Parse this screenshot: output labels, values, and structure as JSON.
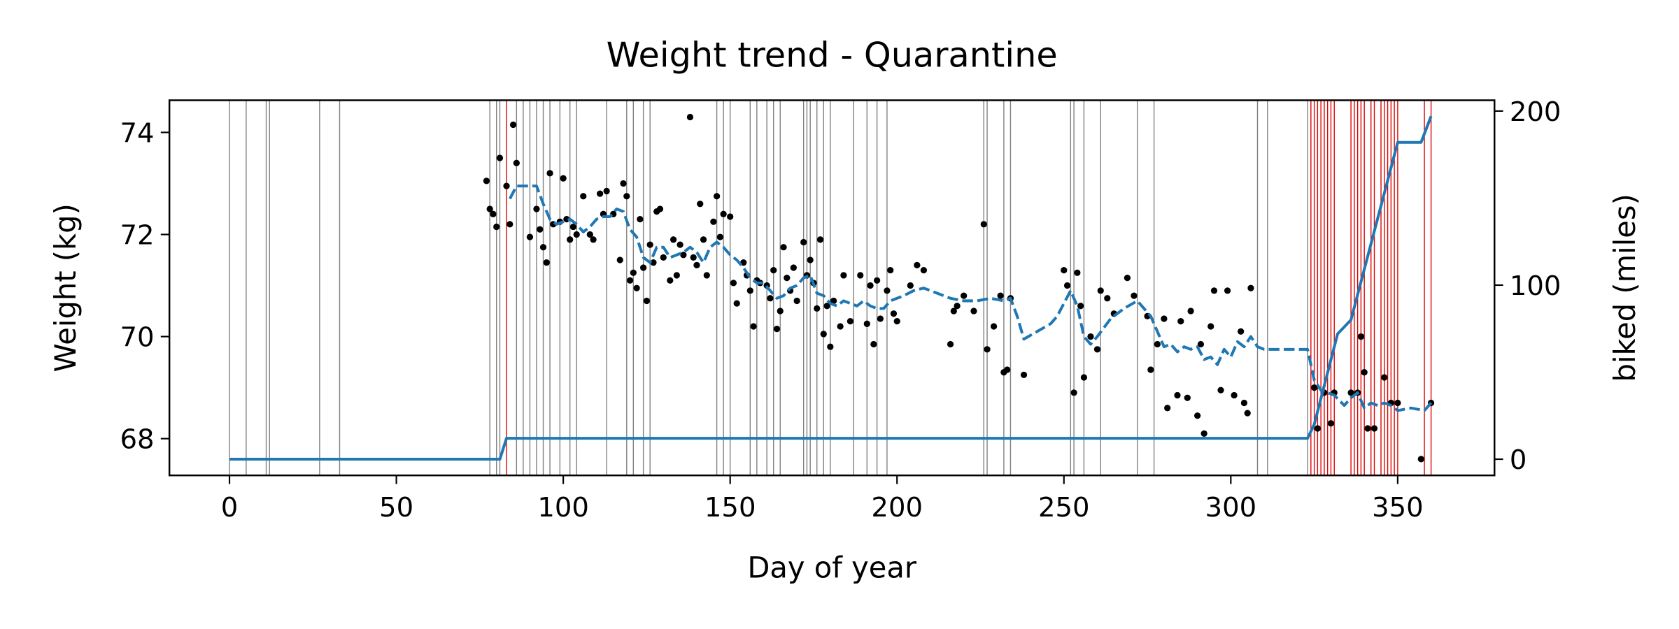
{
  "chart_data": {
    "type": "scatter",
    "title": "Weight trend - Quarantine",
    "xlabel": "Day of year",
    "ylabel": "Weight (kg)",
    "y2label": "biked (miles)",
    "xlim": [
      -18,
      379
    ],
    "ylim": [
      67.28,
      74.63
    ],
    "y2lim": [
      -9.3,
      206.2
    ],
    "xticks": [
      0,
      50,
      100,
      150,
      200,
      250,
      300,
      350
    ],
    "yticks": [
      68,
      70,
      72,
      74
    ],
    "y2ticks": [
      0,
      100,
      200
    ],
    "vlines": [
      {
        "color": "#808080",
        "x": [
          0,
          5,
          11,
          12,
          27,
          33,
          78,
          80,
          81,
          86,
          88,
          90,
          92,
          94,
          96,
          99,
          102,
          104,
          113,
          119,
          121,
          124,
          126,
          146,
          148,
          150,
          156,
          158,
          161,
          163,
          165,
          172,
          173,
          174,
          176,
          178,
          180,
          187,
          191,
          194,
          197,
          226,
          227,
          232,
          234,
          252,
          253,
          256,
          261,
          272,
          277,
          308,
          311,
          323
        ]
      },
      {
        "color": "#e00000",
        "x": [
          83,
          324,
          325,
          326,
          327,
          328,
          329,
          330,
          331,
          336,
          337,
          338,
          339,
          340,
          342,
          343,
          345,
          346,
          347,
          348,
          349,
          350,
          358,
          360
        ]
      }
    ],
    "series": [
      {
        "type": "scatter",
        "color": "#000000",
        "x": [
          77,
          78,
          79,
          80,
          81,
          83,
          84,
          85,
          86,
          90,
          92,
          93,
          94,
          95,
          96,
          97,
          99,
          100,
          101,
          102,
          103,
          104,
          106,
          108,
          109,
          111,
          112,
          113,
          115,
          117,
          118,
          119,
          120,
          121,
          122,
          123,
          124,
          125,
          126,
          127,
          128,
          129,
          130,
          132,
          133,
          134,
          135,
          136,
          138,
          139,
          140,
          141,
          142,
          143,
          145,
          146,
          147,
          148,
          150,
          151,
          152,
          154,
          155,
          156,
          157,
          158,
          159,
          161,
          162,
          163,
          164,
          165,
          166,
          167,
          168,
          169,
          170,
          172,
          173,
          174,
          175,
          176,
          177,
          178,
          179,
          180,
          181,
          183,
          184,
          186,
          189,
          191,
          192,
          193,
          194,
          195,
          197,
          198,
          199,
          200,
          204,
          206,
          208,
          216,
          217,
          218,
          220,
          223,
          226,
          227,
          229,
          231,
          232,
          233,
          234,
          238,
          250,
          251,
          253,
          254,
          255,
          256,
          258,
          260,
          261,
          263,
          265,
          269,
          271,
          275,
          276,
          278,
          280,
          281,
          284,
          285,
          287,
          288,
          290,
          291,
          292,
          294,
          295,
          297,
          299,
          301,
          303,
          304,
          305,
          306,
          325,
          326,
          328,
          330,
          331,
          336,
          338,
          339,
          340,
          341,
          343,
          346,
          348,
          350,
          357,
          360
        ],
        "values": [
          73.05,
          72.5,
          72.4,
          72.15,
          73.5,
          72.95,
          72.2,
          74.15,
          73.4,
          71.95,
          72.5,
          72.1,
          71.75,
          71.45,
          73.2,
          72.2,
          72.25,
          73.1,
          72.3,
          71.9,
          72.15,
          72.0,
          72.75,
          72.0,
          71.9,
          72.8,
          72.4,
          72.85,
          72.4,
          71.5,
          73.0,
          72.75,
          71.1,
          71.25,
          70.95,
          72.3,
          71.35,
          70.7,
          71.8,
          71.45,
          72.45,
          72.5,
          71.55,
          71.1,
          71.9,
          71.2,
          71.8,
          71.6,
          74.3,
          71.55,
          71.4,
          72.6,
          71.9,
          71.2,
          72.25,
          72.75,
          71.95,
          72.4,
          72.35,
          71.05,
          70.65,
          71.45,
          71.2,
          70.9,
          70.2,
          71.1,
          71.05,
          71.0,
          70.75,
          71.3,
          70.15,
          70.5,
          71.75,
          71.15,
          70.9,
          71.35,
          70.7,
          71.85,
          71.2,
          71.5,
          71.05,
          70.55,
          71.9,
          70.05,
          70.6,
          69.8,
          70.7,
          70.2,
          71.2,
          70.3,
          71.2,
          70.25,
          71.0,
          69.85,
          71.1,
          70.35,
          70.9,
          71.3,
          70.45,
          70.3,
          71.0,
          71.4,
          71.3,
          69.85,
          70.5,
          70.6,
          70.8,
          70.5,
          72.2,
          69.75,
          70.2,
          70.8,
          69.3,
          69.35,
          70.75,
          69.25,
          71.3,
          71.0,
          68.9,
          71.25,
          70.6,
          69.2,
          70.0,
          69.75,
          70.9,
          70.75,
          70.45,
          71.15,
          70.8,
          70.4,
          69.35,
          69.85,
          70.35,
          68.6,
          68.85,
          70.3,
          68.8,
          70.5,
          68.45,
          69.85,
          68.1,
          70.2,
          70.9,
          68.95,
          70.9,
          68.85,
          70.1,
          68.7,
          68.5,
          70.95,
          69.0,
          68.2,
          68.9,
          68.3,
          68.9,
          68.9,
          68.9,
          70.0,
          69.3,
          68.2,
          68.2,
          69.2,
          68.7,
          68.7,
          67.6,
          68.7
        ]
      },
      {
        "type": "line",
        "dashed": true,
        "color": "#1f77b4",
        "x": [
          84,
          86,
          90,
          92,
          94,
          96,
          98,
          100,
          102,
          104,
          106,
          108,
          110,
          112,
          114,
          116,
          118,
          120,
          122,
          124,
          126,
          128,
          130,
          132,
          134,
          136,
          138,
          140,
          142,
          144,
          146,
          148,
          150,
          152,
          154,
          156,
          158,
          160,
          162,
          164,
          166,
          168,
          170,
          172,
          174,
          176,
          178,
          180,
          182,
          184,
          186,
          188,
          190,
          192,
          194,
          196,
          198,
          200,
          202,
          205,
          208,
          212,
          216,
          220,
          224,
          228,
          232,
          234,
          236,
          238,
          242,
          246,
          248,
          252,
          254,
          256,
          258,
          260,
          264,
          268,
          272,
          276,
          278,
          280,
          282,
          284,
          286,
          288,
          290,
          292,
          294,
          296,
          298,
          300,
          302,
          304,
          306,
          308,
          310,
          323,
          325,
          327,
          329,
          331,
          334,
          336,
          338,
          340,
          342,
          344,
          346,
          348,
          350,
          354,
          358,
          360
        ],
        "values": [
          72.7,
          72.95,
          72.95,
          72.95,
          72.6,
          72.3,
          72.2,
          72.25,
          72.3,
          72.2,
          72.05,
          72.15,
          72.3,
          72.35,
          72.35,
          72.5,
          72.45,
          72.1,
          71.95,
          71.55,
          71.45,
          71.75,
          71.75,
          71.55,
          71.6,
          71.65,
          71.75,
          71.65,
          71.45,
          71.75,
          71.85,
          71.75,
          71.6,
          71.5,
          71.35,
          71.15,
          71.05,
          71.05,
          70.9,
          70.75,
          70.8,
          70.95,
          71.0,
          71.15,
          71.2,
          70.85,
          70.8,
          70.65,
          70.6,
          70.7,
          70.65,
          70.6,
          70.7,
          70.6,
          70.55,
          70.55,
          70.7,
          70.75,
          70.8,
          70.9,
          70.95,
          70.85,
          70.75,
          70.7,
          70.7,
          70.75,
          70.7,
          70.75,
          70.4,
          69.95,
          70.1,
          70.25,
          70.4,
          70.9,
          70.6,
          70.0,
          69.85,
          70.0,
          70.35,
          70.55,
          70.7,
          70.4,
          70.1,
          69.8,
          69.85,
          69.7,
          69.8,
          69.75,
          69.8,
          69.55,
          69.6,
          69.45,
          69.75,
          69.6,
          69.9,
          69.8,
          70.0,
          69.8,
          69.75,
          69.75,
          69.15,
          68.95,
          68.9,
          68.85,
          68.65,
          68.8,
          68.9,
          68.6,
          68.7,
          68.65,
          68.7,
          68.65,
          68.55,
          68.6,
          68.55,
          68.7
        ]
      },
      {
        "type": "line",
        "axis": "y2",
        "color": "#1f77b4",
        "x": [
          0,
          81,
          83,
          323,
          325,
          332,
          336,
          350,
          357,
          360
        ],
        "values": [
          0,
          0,
          12,
          12,
          20,
          72,
          80,
          182,
          182,
          197
        ]
      }
    ]
  }
}
